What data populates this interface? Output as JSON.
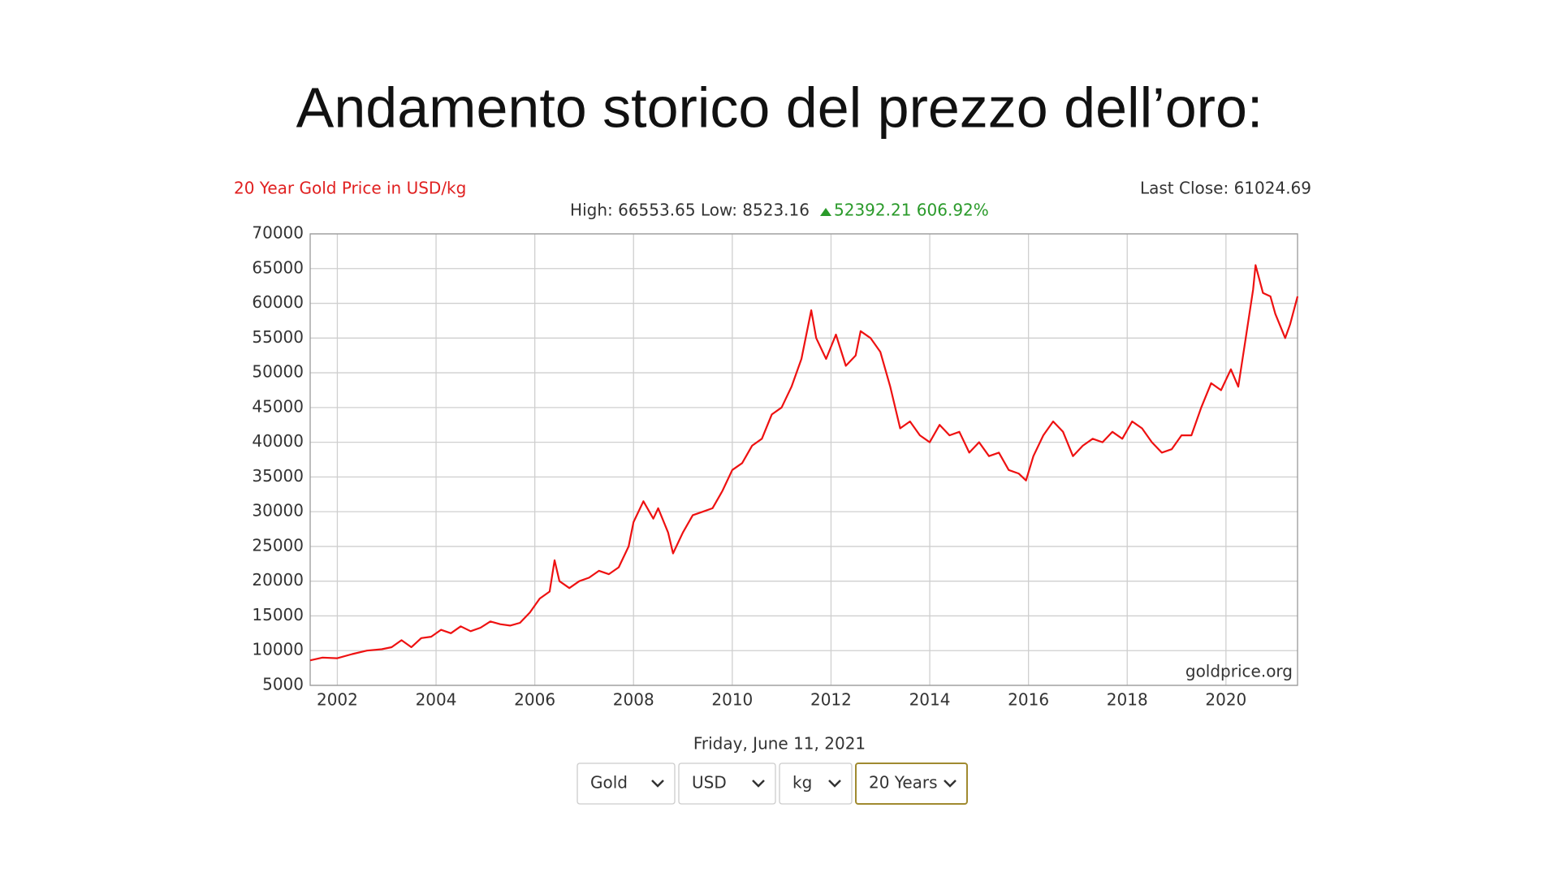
{
  "title": "Andamento storico del prezzo dell’oro:",
  "chart_data": {
    "type": "line",
    "title": "20 Year Gold Price in USD/kg",
    "last_close": "Last Close: 61024.69",
    "summary": "High: 66553.65 Low: 8523.16",
    "change": "52392.21 606.92%",
    "watermark": "goldprice.org",
    "date": "Friday, June 11, 2021",
    "x": [
      2001.45,
      2001.7,
      2002.0,
      2002.3,
      2002.6,
      2002.9,
      2003.1,
      2003.3,
      2003.5,
      2003.7,
      2003.9,
      2004.1,
      2004.3,
      2004.5,
      2004.7,
      2004.9,
      2005.1,
      2005.3,
      2005.5,
      2005.7,
      2005.9,
      2006.1,
      2006.3,
      2006.4,
      2006.5,
      2006.7,
      2006.9,
      2007.1,
      2007.3,
      2007.5,
      2007.7,
      2007.9,
      2008.0,
      2008.2,
      2008.4,
      2008.5,
      2008.7,
      2008.8,
      2009.0,
      2009.2,
      2009.4,
      2009.6,
      2009.8,
      2010.0,
      2010.2,
      2010.4,
      2010.6,
      2010.8,
      2011.0,
      2011.2,
      2011.4,
      2011.6,
      2011.7,
      2011.9,
      2012.1,
      2012.3,
      2012.5,
      2012.6,
      2012.8,
      2013.0,
      2013.2,
      2013.4,
      2013.6,
      2013.8,
      2014.0,
      2014.2,
      2014.4,
      2014.6,
      2014.8,
      2015.0,
      2015.2,
      2015.4,
      2015.6,
      2015.8,
      2015.95,
      2016.1,
      2016.3,
      2016.5,
      2016.7,
      2016.9,
      2017.1,
      2017.3,
      2017.5,
      2017.7,
      2017.9,
      2018.1,
      2018.3,
      2018.5,
      2018.7,
      2018.9,
      2019.1,
      2019.3,
      2019.5,
      2019.7,
      2019.9,
      2020.1,
      2020.25,
      2020.4,
      2020.55,
      2020.6,
      2020.75,
      2020.9,
      2021.0,
      2021.2,
      2021.3,
      2021.45
    ],
    "series": [
      {
        "color": "#ee1111",
        "values": [
          8600,
          9000,
          8900,
          9500,
          10000,
          10200,
          10500,
          11500,
          10500,
          11800,
          12000,
          13000,
          12500,
          13500,
          12800,
          13300,
          14200,
          13800,
          13600,
          14000,
          15500,
          17500,
          18500,
          23000,
          20000,
          19000,
          20000,
          20500,
          21500,
          21000,
          22000,
          25000,
          28500,
          31500,
          29000,
          30500,
          27000,
          24000,
          27000,
          29500,
          30000,
          30500,
          33000,
          36000,
          37000,
          39500,
          40500,
          44000,
          45000,
          48000,
          52000,
          59000,
          55000,
          52000,
          55500,
          51000,
          52500,
          56000,
          55000,
          53000,
          48000,
          42000,
          43000,
          41000,
          40000,
          42500,
          41000,
          41500,
          38500,
          40000,
          38000,
          38500,
          36000,
          35500,
          34500,
          38000,
          41000,
          43000,
          41500,
          38000,
          39500,
          40500,
          40000,
          41500,
          40500,
          43000,
          42000,
          40000,
          38500,
          39000,
          41000,
          41000,
          45000,
          48500,
          47500,
          50500,
          48000,
          55000,
          62000,
          65500,
          61500,
          61000,
          58500,
          55000,
          57000,
          61000
        ]
      }
    ],
    "xlim": [
      2001.45,
      2021.45
    ],
    "xticks": [
      2002,
      2004,
      2006,
      2008,
      2010,
      2012,
      2014,
      2016,
      2018,
      2020
    ],
    "ylim": [
      5000,
      70000
    ],
    "yticks": [
      5000,
      10000,
      15000,
      20000,
      25000,
      30000,
      35000,
      40000,
      45000,
      50000,
      55000,
      60000,
      65000,
      70000
    ],
    "grid": true
  },
  "controls": [
    "Gold",
    "USD",
    "kg",
    "20 Years"
  ]
}
